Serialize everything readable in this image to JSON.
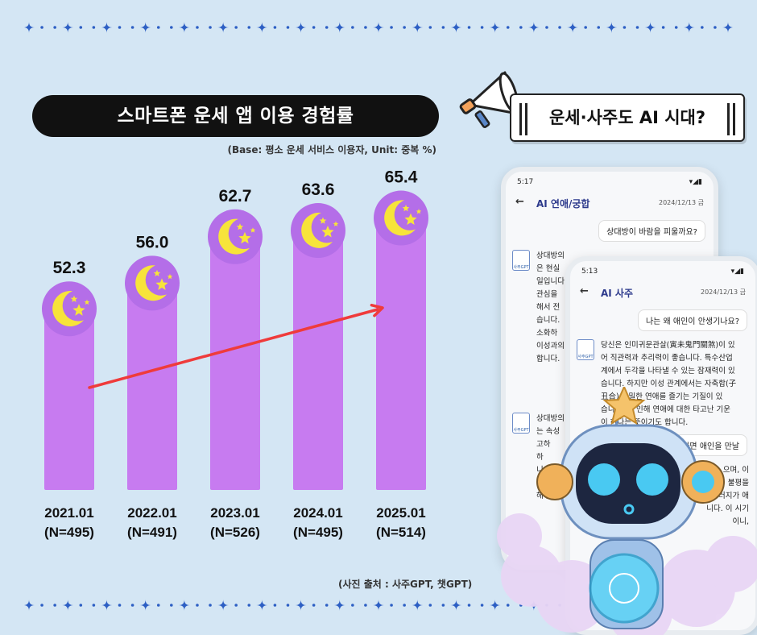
{
  "title": "스마트폰 운세 앱 이용 경험률",
  "base_note": "(Base: 평소 운세 서비스 이용자, Unit: 중복 %)",
  "tagline": "운세·사주도 AI 시대?",
  "source": "(사진 출처 : 사주GPT, 챗GPT)",
  "colors": {
    "bar": "#c77bf0",
    "moon_bg": "#b46ee8",
    "moon": "#f7e43a",
    "arrow": "#ef3b3b",
    "background": "#d4e6f4"
  },
  "icons": {
    "megaphone": "megaphone-icon",
    "moon": "moon-stars-icon",
    "robot": "robot-mascot"
  },
  "chart_data": {
    "type": "bar",
    "title": "스마트폰 운세 앱 이용 경험률",
    "categories": [
      "2021.01",
      "2022.01",
      "2023.01",
      "2024.01",
      "2025.01"
    ],
    "sample_sizes": [
      "(N=495)",
      "(N=491)",
      "(N=526)",
      "(N=495)",
      "(N=514)"
    ],
    "values": [
      52.3,
      56.0,
      62.7,
      63.6,
      65.4
    ],
    "value_labels": [
      "52.3",
      "56.0",
      "62.7",
      "63.6",
      "65.4"
    ],
    "unit": "%",
    "trend_arrow": true,
    "grid": false
  },
  "phone1": {
    "time": "5:17",
    "title": "AI 연애/궁합",
    "date": "2024/12/13 금",
    "user_msg": "상대방이 바람을 피울까요?",
    "bot_lines": [
      "상대방의",
      "은 현실",
      "일입니다",
      "관심을",
      "해서 전",
      "습니다.",
      "소화하",
      "이성과의",
      "합니다."
    ],
    "bot2_lines": [
      "상대방의",
      "는 속성",
      "고하",
      "하",
      "니",
      "고",
      "해주는"
    ],
    "avatar_label": "사주GPT"
  },
  "phone2": {
    "time": "5:13",
    "title": "AI 사주",
    "date": "2024/12/13 금",
    "user_msg": "나는 왜 애인이 안생기나요?",
    "bot_lines": [
      "당신은 인미귀문관살(寅未鬼門關煞)이 있",
      "어 직관력과 추리력이 좋습니다. 특수산업",
      "계에서 두각을 나타낼 수 있는 잠재력이 있",
      "습니다. 하지만 이성 관계에서는 자축합(子",
      "丑合) 은밀한 연애를 즐기는 기질이 있",
      "습니다. 로 인해 연애에 대한 타고난 기운",
      "이 하다는 뜻이기도 합니다."
    ],
    "user_msg2": "하면 애인을 만날",
    "bot2_lines": [
      "으며, 이",
      "불평을",
      "러지가 애",
      "니다. 이 시기",
      "이니,"
    ],
    "avatar_label": "사주GPT"
  }
}
